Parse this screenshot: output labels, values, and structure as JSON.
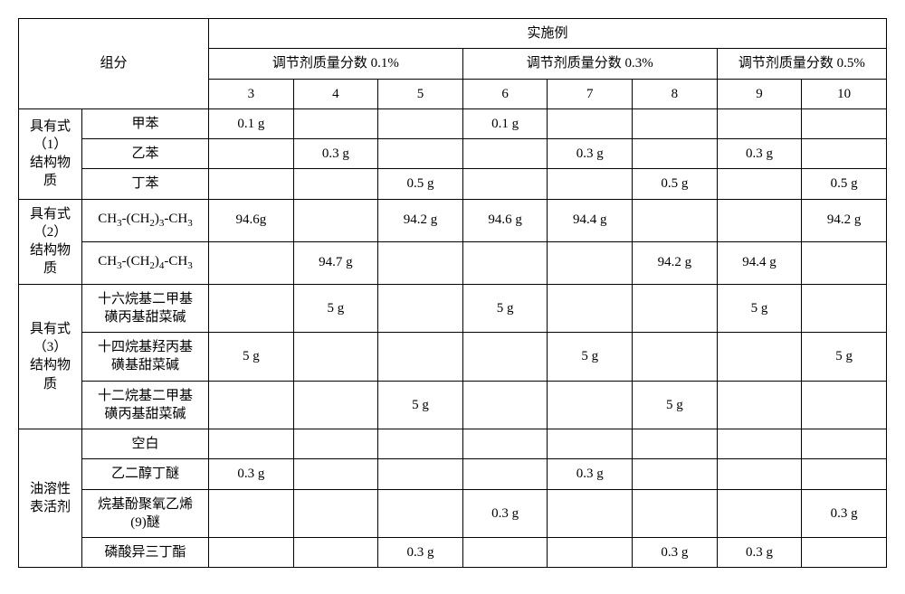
{
  "header": {
    "component": "组分",
    "example": "实施例",
    "mass_fractions": [
      "调节剂质量分数 0.1%",
      "调节剂质量分数 0.3%",
      "调节剂质量分数 0.5%"
    ],
    "col_nums": [
      "3",
      "4",
      "5",
      "6",
      "7",
      "8",
      "9",
      "10"
    ]
  },
  "groups": [
    {
      "label": "具有式（1）结构物质",
      "rows": [
        {
          "name": "甲苯",
          "cells": [
            "0.1 g",
            "",
            "",
            "0.1 g",
            "",
            "",
            "",
            ""
          ]
        },
        {
          "name": "乙苯",
          "cells": [
            "",
            "0.3 g",
            "",
            "",
            "0.3 g",
            "",
            "0.3 g",
            ""
          ]
        },
        {
          "name": "丁苯",
          "cells": [
            "",
            "",
            "0.5 g",
            "",
            "",
            "0.5 g",
            "",
            "0.5 g"
          ]
        }
      ]
    },
    {
      "label": "具有式（2）结构物质",
      "rows": [
        {
          "name": "CH3-(CH2)3-CH3",
          "cells": [
            "94.6g",
            "",
            "94.2 g",
            "94.6 g",
            "94.4 g",
            "",
            "",
            "94.2 g"
          ]
        },
        {
          "name": "CH3-(CH2)4-CH3",
          "cells": [
            "",
            "94.7 g",
            "",
            "",
            "",
            "94.2 g",
            "94.4 g",
            ""
          ]
        }
      ]
    },
    {
      "label": "具有式（3）结构物质",
      "rows": [
        {
          "name": "十六烷基二甲基磺丙基甜菜碱",
          "cells": [
            "",
            "5 g",
            "",
            "5 g",
            "",
            "",
            "5 g",
            ""
          ]
        },
        {
          "name": "十四烷基羟丙基磺基甜菜碱",
          "cells": [
            "5 g",
            "",
            "",
            "",
            "5 g",
            "",
            "",
            "5 g"
          ]
        },
        {
          "name": "十二烷基二甲基磺丙基甜菜碱",
          "cells": [
            "",
            "",
            "5 g",
            "",
            "",
            "5 g",
            "",
            ""
          ]
        }
      ]
    },
    {
      "label": "油溶性表活剂",
      "rows": [
        {
          "name": "空白",
          "cells": [
            "",
            "",
            "",
            "",
            "",
            "",
            "",
            ""
          ]
        },
        {
          "name": "乙二醇丁醚",
          "cells": [
            "0.3 g",
            "",
            "",
            "",
            "0.3 g",
            "",
            "",
            ""
          ]
        },
        {
          "name": "烷基酚聚氧乙烯(9)醚",
          "cells": [
            "",
            "",
            "",
            "0.3 g",
            "",
            "",
            "",
            "0.3 g"
          ]
        },
        {
          "name": "磷酸异三丁酯",
          "cells": [
            "",
            "",
            "0.3 g",
            "",
            "",
            "0.3 g",
            "0.3 g",
            ""
          ]
        }
      ]
    }
  ]
}
